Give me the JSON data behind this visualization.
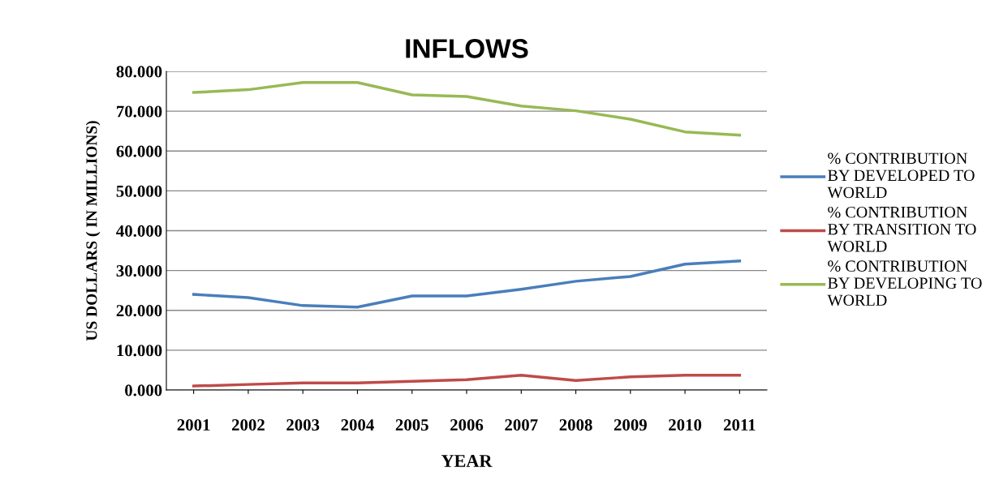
{
  "chart_data": {
    "type": "line",
    "title": "INFLOWS",
    "xlabel": "YEAR",
    "ylabel": "US DOLLARS ( IN MILLIONS)",
    "categories": [
      "2001",
      "2002",
      "2003",
      "2004",
      "2005",
      "2006",
      "2007",
      "2008",
      "2009",
      "2010",
      "2011"
    ],
    "series": [
      {
        "name": "% CONTRIBUTION\nBY DEVELOPED TO\nWORLD",
        "color": "#4a7ebb",
        "values": [
          24.0,
          23.2,
          21.2,
          20.8,
          23.6,
          23.6,
          25.3,
          27.3,
          28.5,
          31.6,
          32.4
        ]
      },
      {
        "name": "% CONTRIBUTION\nBY TRANSITION TO\nWORLD",
        "color": "#be4b48",
        "values": [
          1.0,
          1.4,
          1.8,
          1.8,
          2.2,
          2.6,
          3.7,
          2.4,
          3.3,
          3.7,
          3.7
        ]
      },
      {
        "name": "% CONTRIBUTION\nBY DEVELOPING TO\nWORLD",
        "color": "#98b954",
        "values": [
          74.7,
          75.4,
          77.2,
          77.2,
          74.1,
          73.7,
          71.3,
          70.1,
          68.0,
          64.8,
          64.0
        ]
      }
    ],
    "ylim": [
      0,
      80
    ],
    "yticks": [
      {
        "value": 0,
        "label": "0.000"
      },
      {
        "value": 10,
        "label": "10.000"
      },
      {
        "value": 20,
        "label": "20.000"
      },
      {
        "value": 30,
        "label": "30.000"
      },
      {
        "value": 40,
        "label": "40.000"
      },
      {
        "value": 50,
        "label": "50.000"
      },
      {
        "value": 60,
        "label": "60.000"
      },
      {
        "value": 70,
        "label": "70.000"
      },
      {
        "value": 80,
        "label": "80.000"
      }
    ],
    "grid": "y",
    "legend": "right",
    "marker": "none",
    "line_style": "solid"
  }
}
